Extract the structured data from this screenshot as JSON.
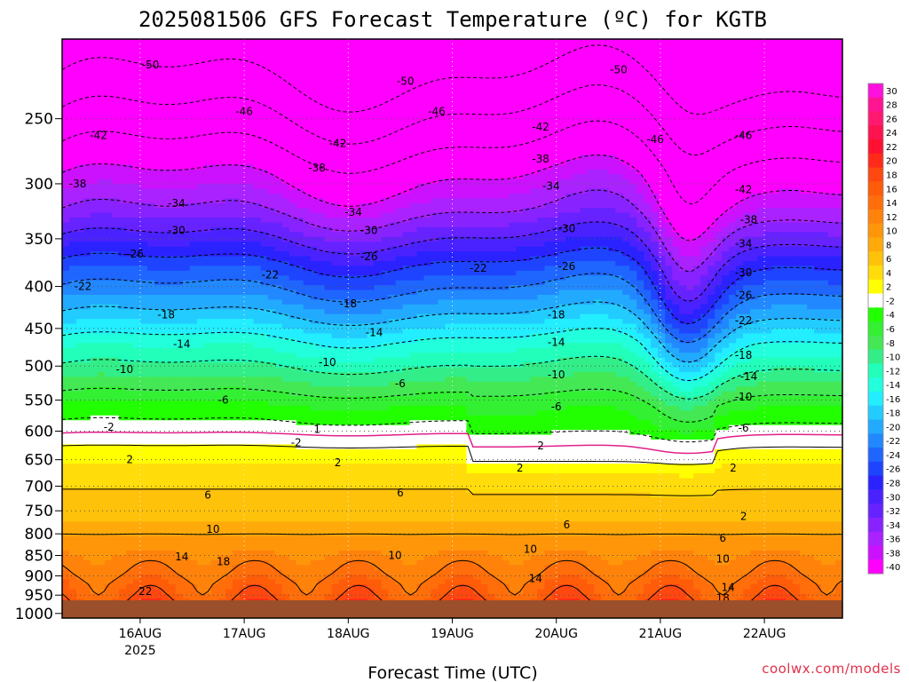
{
  "chart_data": {
    "type": "heatmap",
    "title": "2025081506 GFS Forecast Temperature (ºC) for KGTB",
    "xlabel": "Forecast Time (UTC)",
    "ylabel": "",
    "credit": "coolwx.com/models",
    "x_ticks": [
      {
        "label": "16AUG",
        "sub": "2025",
        "day": 0.75
      },
      {
        "label": "17AUG",
        "sub": "",
        "day": 1.75
      },
      {
        "label": "18AUG",
        "sub": "",
        "day": 2.75
      },
      {
        "label": "19AUG",
        "sub": "",
        "day": 3.75
      },
      {
        "label": "20AUG",
        "sub": "",
        "day": 4.75
      },
      {
        "label": "21AUG",
        "sub": "",
        "day": 5.75
      },
      {
        "label": "22AUG",
        "sub": "",
        "day": 6.75
      }
    ],
    "x_range_days": [
      0,
      7.5
    ],
    "y_ticks": [
      250,
      300,
      350,
      400,
      450,
      500,
      550,
      600,
      650,
      700,
      750,
      800,
      850,
      900,
      950,
      1000
    ],
    "y_range_hpa": [
      200,
      1013
    ],
    "y_scale": "log",
    "colorbar": {
      "levels": [
        30,
        28,
        26,
        24,
        22,
        20,
        18,
        16,
        14,
        12,
        10,
        8,
        6,
        4,
        2,
        -2,
        -4,
        -6,
        -8,
        -10,
        -12,
        -14,
        -16,
        -18,
        -20,
        -22,
        -24,
        -26,
        -28,
        -30,
        -32,
        -34,
        -36,
        -38,
        -40
      ],
      "colors": [
        "#ff11dd",
        "#ff1493",
        "#ff1a70",
        "#ff1250",
        "#ff1030",
        "#ff2a1a",
        "#ff4710",
        "#ff5c0a",
        "#ff6e0a",
        "#ff820a",
        "#ff960a",
        "#ffaa0a",
        "#ffc20a",
        "#ffdc0a",
        "#ffff00",
        "#ffffff",
        "#22ff00",
        "#33f033",
        "#44e855",
        "#33ee88",
        "#22ffbb",
        "#22ffdd",
        "#22eeff",
        "#22ccff",
        "#22aaff",
        "#2288ff",
        "#1f66ff",
        "#1f44ff",
        "#2a22ff",
        "#4a22ff",
        "#6622ff",
        "#8822ff",
        "#aa22ff",
        "#cc11ff",
        "#ff00ff"
      ]
    },
    "profile_points_hpa": [
      200,
      230,
      260,
      290,
      320,
      350,
      380,
      410,
      440,
      470,
      500,
      530,
      560,
      590,
      620,
      650,
      680,
      710,
      740,
      770,
      800,
      830,
      860,
      890,
      920,
      950,
      980,
      1010
    ],
    "profile_base_temp_c": [
      -54,
      -49,
      -44,
      -39,
      -35,
      -30,
      -25,
      -21,
      -17,
      -13,
      -10,
      -7,
      -4,
      -2,
      1,
      3,
      5,
      6,
      7,
      8,
      10,
      11,
      13,
      14,
      16,
      17,
      19,
      20
    ],
    "contour_labels": [
      {
        "text": "-50",
        "day": 0.85,
        "hpa": 215
      },
      {
        "text": "-50",
        "day": 3.3,
        "hpa": 225
      },
      {
        "text": "-50",
        "day": 5.35,
        "hpa": 218
      },
      {
        "text": "-46",
        "day": 1.75,
        "hpa": 245
      },
      {
        "text": "-46",
        "day": 3.6,
        "hpa": 245
      },
      {
        "text": "-46",
        "day": 5.7,
        "hpa": 265
      },
      {
        "text": "-46",
        "day": 6.55,
        "hpa": 262
      },
      {
        "text": "-42",
        "day": 0.35,
        "hpa": 262
      },
      {
        "text": "-42",
        "day": 2.65,
        "hpa": 268
      },
      {
        "text": "-42",
        "day": 4.6,
        "hpa": 256
      },
      {
        "text": "-42",
        "day": 6.55,
        "hpa": 305
      },
      {
        "text": "-38",
        "day": 0.15,
        "hpa": 300
      },
      {
        "text": "-38",
        "day": 2.45,
        "hpa": 287
      },
      {
        "text": "-38",
        "day": 4.6,
        "hpa": 280
      },
      {
        "text": "-38",
        "day": 6.6,
        "hpa": 332
      },
      {
        "text": "-34",
        "day": 1.1,
        "hpa": 317
      },
      {
        "text": "-34",
        "day": 2.8,
        "hpa": 325
      },
      {
        "text": "-34",
        "day": 4.7,
        "hpa": 302
      },
      {
        "text": "-34",
        "day": 6.55,
        "hpa": 355
      },
      {
        "text": "-30",
        "day": 1.1,
        "hpa": 342
      },
      {
        "text": "-30",
        "day": 2.95,
        "hpa": 342
      },
      {
        "text": "-30",
        "day": 4.85,
        "hpa": 340
      },
      {
        "text": "-30",
        "day": 6.55,
        "hpa": 385
      },
      {
        "text": "-26",
        "day": 0.7,
        "hpa": 365
      },
      {
        "text": "-26",
        "day": 2.95,
        "hpa": 368
      },
      {
        "text": "-26",
        "day": 4.85,
        "hpa": 378
      },
      {
        "text": "-26",
        "day": 6.55,
        "hpa": 410
      },
      {
        "text": "-22",
        "day": 0.2,
        "hpa": 400
      },
      {
        "text": "-22",
        "day": 2.0,
        "hpa": 387
      },
      {
        "text": "-22",
        "day": 4.0,
        "hpa": 380
      },
      {
        "text": "-22",
        "day": 6.55,
        "hpa": 440
      },
      {
        "text": "-18",
        "day": 1.0,
        "hpa": 433
      },
      {
        "text": "-18",
        "day": 2.75,
        "hpa": 420
      },
      {
        "text": "-18",
        "day": 4.75,
        "hpa": 433
      },
      {
        "text": "-18",
        "day": 6.55,
        "hpa": 485
      },
      {
        "text": "-14",
        "day": 1.15,
        "hpa": 470
      },
      {
        "text": "-14",
        "day": 3.0,
        "hpa": 455
      },
      {
        "text": "-14",
        "day": 4.75,
        "hpa": 468
      },
      {
        "text": "-14",
        "day": 6.6,
        "hpa": 515
      },
      {
        "text": "-10",
        "day": 0.6,
        "hpa": 505
      },
      {
        "text": "-10",
        "day": 2.55,
        "hpa": 495
      },
      {
        "text": "-10",
        "day": 4.75,
        "hpa": 512
      },
      {
        "text": "-10",
        "day": 6.55,
        "hpa": 545
      },
      {
        "text": "-6",
        "day": 1.55,
        "hpa": 550
      },
      {
        "text": "-6",
        "day": 3.25,
        "hpa": 525
      },
      {
        "text": "-6",
        "day": 4.75,
        "hpa": 560
      },
      {
        "text": "-6",
        "day": 6.55,
        "hpa": 595
      },
      {
        "text": "-2",
        "day": 0.45,
        "hpa": 593
      },
      {
        "text": "-2",
        "day": 2.25,
        "hpa": 620
      },
      {
        "text": "1",
        "day": 2.45,
        "hpa": 597
      },
      {
        "text": "2",
        "day": 0.65,
        "hpa": 650
      },
      {
        "text": "2",
        "day": 2.65,
        "hpa": 655
      },
      {
        "text": "2",
        "day": 4.6,
        "hpa": 625
      },
      {
        "text": "2",
        "day": 4.4,
        "hpa": 665
      },
      {
        "text": "2",
        "day": 6.45,
        "hpa": 665
      },
      {
        "text": "2",
        "day": 6.55,
        "hpa": 762
      },
      {
        "text": "6",
        "day": 1.4,
        "hpa": 718
      },
      {
        "text": "6",
        "day": 3.25,
        "hpa": 713
      },
      {
        "text": "6",
        "day": 4.85,
        "hpa": 780
      },
      {
        "text": "6",
        "day": 6.35,
        "hpa": 810
      },
      {
        "text": "10",
        "day": 1.45,
        "hpa": 790
      },
      {
        "text": "10",
        "day": 3.2,
        "hpa": 850
      },
      {
        "text": "10",
        "day": 4.5,
        "hpa": 835
      },
      {
        "text": "10",
        "day": 6.35,
        "hpa": 858
      },
      {
        "text": "14",
        "day": 1.15,
        "hpa": 853
      },
      {
        "text": "14",
        "day": 2.6,
        "hpa": 985
      },
      {
        "text": "14",
        "day": 4.55,
        "hpa": 907
      },
      {
        "text": "14",
        "day": 6.4,
        "hpa": 930
      },
      {
        "text": "18",
        "day": 1.55,
        "hpa": 865
      },
      {
        "text": "18",
        "day": 6.35,
        "hpa": 958
      },
      {
        "text": "22",
        "day": 0.8,
        "hpa": 940
      }
    ]
  }
}
